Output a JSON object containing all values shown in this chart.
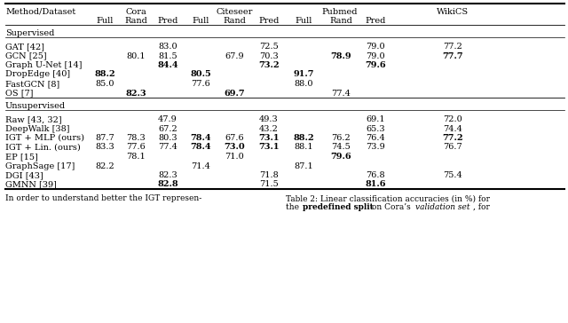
{
  "sections": [
    {
      "section_name": "Supervised",
      "rows": [
        {
          "method": "GAT [42]",
          "vals": [
            "",
            "",
            "83.0",
            "",
            "",
            "72.5",
            "",
            "",
            "79.0",
            "77.2"
          ],
          "bold_idx": []
        },
        {
          "method": "GCN [25]",
          "vals": [
            "",
            "80.1",
            "81.5",
            "",
            "67.9",
            "70.3",
            "",
            "78.9",
            "79.0",
            "77.7"
          ],
          "bold_idx": [
            7,
            9
          ]
        },
        {
          "method": "Graph U-Net [14]",
          "vals": [
            "",
            "",
            "84.4",
            "",
            "",
            "73.2",
            "",
            "",
            "79.6",
            ""
          ],
          "bold_idx": [
            2,
            5,
            8
          ]
        },
        {
          "method": "DropEdge [40]",
          "vals": [
            "88.2",
            "",
            "",
            "80.5",
            "",
            "",
            "91.7",
            "",
            "",
            ""
          ],
          "bold_idx": [
            0,
            3,
            6
          ]
        },
        {
          "method": "FastGCN [8]",
          "vals": [
            "85.0",
            "",
            "",
            "77.6",
            "",
            "",
            "88.0",
            "",
            "",
            ""
          ],
          "bold_idx": []
        },
        {
          "method": "OS [7]",
          "vals": [
            "",
            "82.3",
            "",
            "",
            "69.7",
            "",
            "",
            "77.4",
            "",
            ""
          ],
          "bold_idx": [
            1,
            4
          ]
        }
      ]
    },
    {
      "section_name": "Unsupervised",
      "rows": [
        {
          "method": "Raw [43, 32]",
          "vals": [
            "",
            "",
            "47.9",
            "",
            "",
            "49.3",
            "",
            "",
            "69.1",
            "72.0"
          ],
          "bold_idx": []
        },
        {
          "method": "DeepWalk [38]",
          "vals": [
            "",
            "",
            "67.2",
            "",
            "",
            "43.2",
            "",
            "",
            "65.3",
            "74.4"
          ],
          "bold_idx": []
        },
        {
          "method": "IGT + MLP (ours)",
          "vals": [
            "87.7",
            "78.3",
            "80.3",
            "78.4",
            "67.6",
            "73.1",
            "88.2",
            "76.2",
            "76.4",
            "77.2"
          ],
          "bold_idx": [
            3,
            5,
            6,
            9
          ]
        },
        {
          "method": "IGT + Lin. (ours)",
          "vals": [
            "83.3",
            "77.6",
            "77.4",
            "78.4",
            "73.0",
            "73.1",
            "88.1",
            "74.5",
            "73.9",
            "76.7"
          ],
          "bold_idx": [
            3,
            4,
            5
          ]
        },
        {
          "method": "EP [15]",
          "vals": [
            "",
            "78.1",
            "",
            "",
            "71.0",
            "",
            "",
            "79.6",
            "",
            ""
          ],
          "bold_idx": [
            7
          ]
        },
        {
          "method": "GraphSage [17]",
          "vals": [
            "82.2",
            "",
            "",
            "71.4",
            "",
            "",
            "87.1",
            "",
            "",
            ""
          ],
          "bold_idx": []
        },
        {
          "method": "DGI [43]",
          "vals": [
            "",
            "",
            "82.3",
            "",
            "",
            "71.8",
            "",
            "",
            "76.8",
            "75.4"
          ],
          "bold_idx": []
        },
        {
          "method": "GMNN [39]",
          "vals": [
            "",
            "",
            "82.8",
            "",
            "",
            "71.5",
            "",
            "",
            "81.6",
            ""
          ],
          "bold_idx": [
            2,
            8
          ]
        }
      ]
    }
  ],
  "col_group_names": [
    "Cora",
    "Citeseer",
    "Pubmed",
    "WikiCS"
  ],
  "sub_labels": [
    "Full",
    "Rand",
    "Pred",
    "Full",
    "Rand",
    "Pred",
    "Full",
    "Rand",
    "Pred"
  ],
  "footer_left": "In order to understand better the IGT represen-",
  "caption_line1": "Table 2: Linear classification accuracies (in %) for",
  "caption_line2_normal1": "the ",
  "caption_line2_bold": "predefined split",
  "caption_line2_normal2": " on Cora’s ",
  "caption_line2_italic": "validation set",
  "caption_line2_normal3": ", for"
}
